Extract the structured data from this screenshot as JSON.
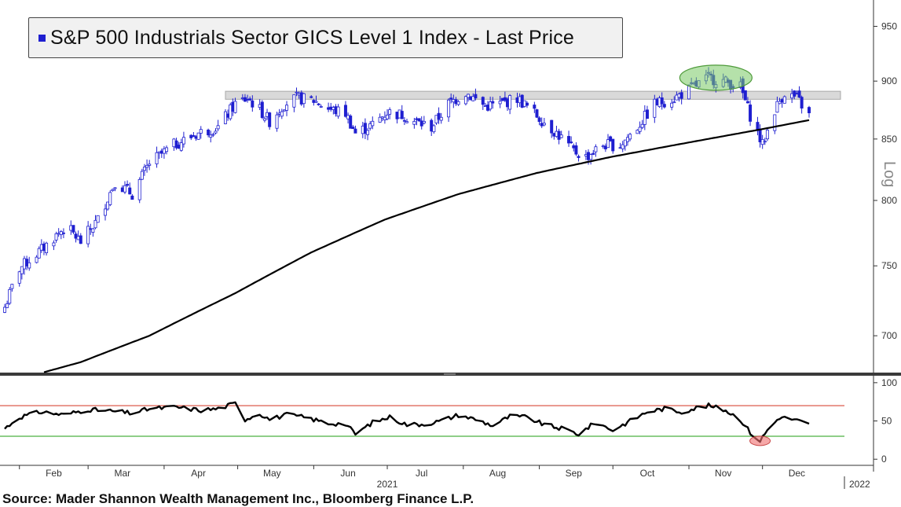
{
  "chart_data": [
    {
      "type": "candlestick",
      "legend": [
        {
          "label": "S&P 500 Industrials Sector GICS Level 1 Index - Last Price",
          "color": "#1f1fd0"
        }
      ],
      "y_axis_title": "Log",
      "y_scale": "log",
      "y_ticks": [
        700,
        750,
        800,
        850,
        900,
        950
      ],
      "ylim": [
        675,
        975
      ],
      "x_months": [
        "Feb",
        "Mar",
        "Apr",
        "May",
        "Jun",
        "Jul",
        "Aug",
        "Sep",
        "Oct",
        "Nov",
        "Dec"
      ],
      "x_year_labels": [
        "2021",
        "2022"
      ],
      "price_close_anchors": [
        [
          "2021-01-26",
          720
        ],
        [
          "2021-02-01",
          748
        ],
        [
          "2021-02-10",
          762
        ],
        [
          "2021-02-20",
          780
        ],
        [
          "2021-02-26",
          768
        ],
        [
          "2021-03-05",
          785
        ],
        [
          "2021-03-12",
          815
        ],
        [
          "2021-03-19",
          805
        ],
        [
          "2021-03-26",
          830
        ],
        [
          "2021-04-05",
          845
        ],
        [
          "2021-04-15",
          855
        ],
        [
          "2021-04-23",
          860
        ],
        [
          "2021-04-30",
          880
        ],
        [
          "2021-05-05",
          885
        ],
        [
          "2021-05-10",
          875
        ],
        [
          "2021-05-14",
          865
        ],
        [
          "2021-05-20",
          880
        ],
        [
          "2021-05-25",
          885
        ],
        [
          "2021-06-01",
          883
        ],
        [
          "2021-06-08",
          875
        ],
        [
          "2021-06-14",
          872
        ],
        [
          "2021-06-18",
          855
        ],
        [
          "2021-06-25",
          862
        ],
        [
          "2021-07-01",
          873
        ],
        [
          "2021-07-08",
          870
        ],
        [
          "2021-07-12",
          865
        ],
        [
          "2021-07-19",
          860
        ],
        [
          "2021-07-26",
          880
        ],
        [
          "2021-08-02",
          890
        ],
        [
          "2021-08-10",
          878
        ],
        [
          "2021-08-16",
          880
        ],
        [
          "2021-08-23",
          885
        ],
        [
          "2021-08-31",
          870
        ],
        [
          "2021-09-08",
          855
        ],
        [
          "2021-09-15",
          840
        ],
        [
          "2021-09-20",
          835
        ],
        [
          "2021-09-27",
          845
        ],
        [
          "2021-10-04",
          845
        ],
        [
          "2021-10-11",
          860
        ],
        [
          "2021-10-18",
          880
        ],
        [
          "2021-10-26",
          885
        ],
        [
          "2021-11-03",
          895
        ],
        [
          "2021-11-09",
          903
        ],
        [
          "2021-11-15",
          900
        ],
        [
          "2021-11-22",
          895
        ],
        [
          "2021-11-26",
          870
        ],
        [
          "2021-12-01",
          845
        ],
        [
          "2021-12-06",
          875
        ],
        [
          "2021-12-10",
          890
        ],
        [
          "2021-12-15",
          885
        ],
        [
          "2021-12-20",
          870
        ]
      ],
      "moving_average_anchors": [
        [
          "2021-01-26",
          668
        ],
        [
          "2021-02-26",
          682
        ],
        [
          "2021-03-26",
          700
        ],
        [
          "2021-04-30",
          730
        ],
        [
          "2021-05-31",
          760
        ],
        [
          "2021-06-30",
          785
        ],
        [
          "2021-07-30",
          805
        ],
        [
          "2021-08-31",
          822
        ],
        [
          "2021-09-30",
          835
        ],
        [
          "2021-10-29",
          846
        ],
        [
          "2021-11-30",
          858
        ],
        [
          "2021-12-20",
          866
        ]
      ],
      "resistance_band": [
        884,
        891
      ],
      "annotations": [
        {
          "shape": "ellipse",
          "color": "#4caf50",
          "period": "November 2021 highs"
        }
      ]
    },
    {
      "type": "line",
      "series_description": "RSI",
      "y_ticks": [
        0,
        50,
        100
      ],
      "ylim": [
        -8,
        106
      ],
      "overbought_line": 70,
      "oversold_line": 30,
      "rsi_anchors": [
        [
          "2021-01-26",
          40
        ],
        [
          "2021-02-01",
          55
        ],
        [
          "2021-02-10",
          62
        ],
        [
          "2021-02-19",
          58
        ],
        [
          "2021-03-01",
          65
        ],
        [
          "2021-03-10",
          63
        ],
        [
          "2021-03-19",
          60
        ],
        [
          "2021-03-26",
          66
        ],
        [
          "2021-04-06",
          68
        ],
        [
          "2021-04-16",
          64
        ],
        [
          "2021-04-23",
          66
        ],
        [
          "2021-04-30",
          73
        ],
        [
          "2021-05-04",
          52
        ],
        [
          "2021-05-10",
          60
        ],
        [
          "2021-05-14",
          52
        ],
        [
          "2021-05-21",
          58
        ],
        [
          "2021-05-28",
          55
        ],
        [
          "2021-06-07",
          47
        ],
        [
          "2021-06-14",
          46
        ],
        [
          "2021-06-18",
          33
        ],
        [
          "2021-06-25",
          48
        ],
        [
          "2021-07-02",
          55
        ],
        [
          "2021-07-09",
          45
        ],
        [
          "2021-07-16",
          46
        ],
        [
          "2021-07-23",
          50
        ],
        [
          "2021-07-30",
          58
        ],
        [
          "2021-08-06",
          52
        ],
        [
          "2021-08-13",
          44
        ],
        [
          "2021-08-20",
          56
        ],
        [
          "2021-08-27",
          55
        ],
        [
          "2021-09-03",
          45
        ],
        [
          "2021-09-10",
          40
        ],
        [
          "2021-09-17",
          33
        ],
        [
          "2021-09-24",
          48
        ],
        [
          "2021-10-01",
          38
        ],
        [
          "2021-10-08",
          50
        ],
        [
          "2021-10-15",
          62
        ],
        [
          "2021-10-22",
          66
        ],
        [
          "2021-10-29",
          62
        ],
        [
          "2021-11-05",
          68
        ],
        [
          "2021-11-09",
          70
        ],
        [
          "2021-11-16",
          64
        ],
        [
          "2021-11-22",
          52
        ],
        [
          "2021-11-26",
          35
        ],
        [
          "2021-11-30",
          24
        ],
        [
          "2021-12-03",
          38
        ],
        [
          "2021-12-08",
          55
        ],
        [
          "2021-12-14",
          52
        ],
        [
          "2021-12-20",
          45
        ]
      ],
      "annotations": [
        {
          "shape": "ellipse",
          "color": "#f08080",
          "period": "late November 2021 RSI low"
        }
      ]
    }
  ],
  "source_text": "Source: Mader Shannon Wealth Management Inc., Bloomberg Finance L.P.",
  "colors": {
    "candle": "#1f1fd0",
    "moving_average": "#000000",
    "rsi_line": "#000000",
    "overbought": "#d84a3a",
    "oversold": "#4cb040",
    "resistance_band": "#d9d9d9"
  }
}
